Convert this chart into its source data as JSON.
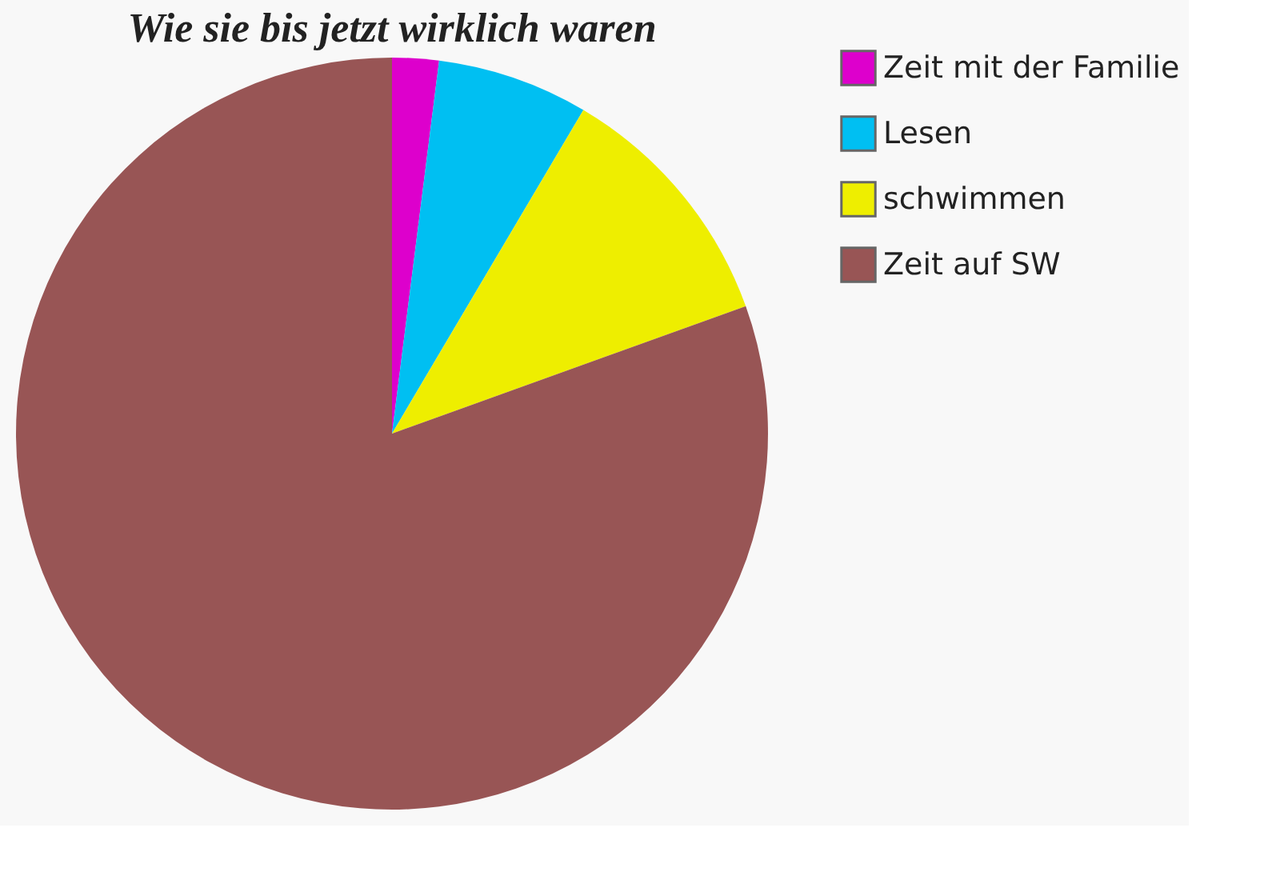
{
  "chart_data": {
    "type": "pie",
    "title": "Wie sie bis jetzt wirklich waren",
    "categories": [
      "Zeit mit der Familie",
      "Lesen",
      "schwimmen",
      "Zeit auf SW"
    ],
    "values": [
      2,
      6.5,
      11,
      80.5
    ],
    "colors": [
      "#dd00cc",
      "#00bff2",
      "#eeee00",
      "#985555"
    ],
    "legend": "top right"
  }
}
